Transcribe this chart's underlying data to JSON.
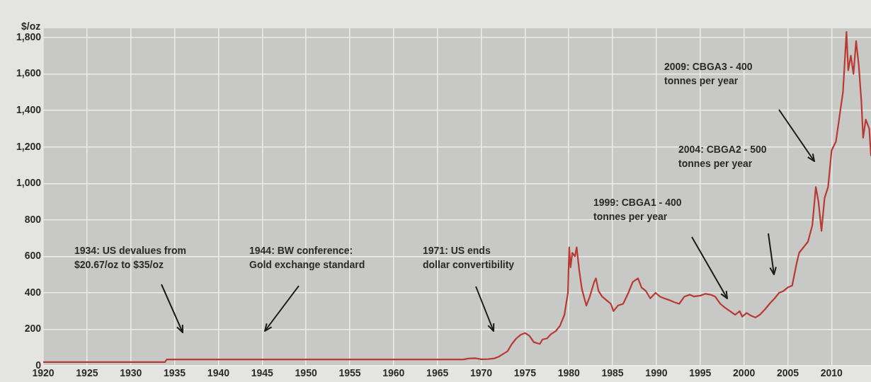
{
  "chart_data": {
    "type": "line",
    "ylabel": "$/oz",
    "x": [
      1920,
      1933.9,
      1934.1,
      1968,
      1968.5,
      1969.3,
      1970,
      1970.8,
      1971.5,
      1972,
      1972.5,
      1973,
      1973.5,
      1974,
      1974.5,
      1975,
      1975.5,
      1976,
      1976.7,
      1977,
      1977.5,
      1978,
      1978.5,
      1979,
      1979.5,
      1979.9,
      1980.05,
      1980.2,
      1980.4,
      1980.7,
      1980.9,
      1981.2,
      1981.5,
      1982,
      1982.4,
      1982.9,
      1983.1,
      1983.4,
      1983.8,
      1984.3,
      1984.8,
      1985.1,
      1985.6,
      1986.2,
      1986.8,
      1987.3,
      1987.9,
      1988.3,
      1988.8,
      1989.3,
      1989.9,
      1990.4,
      1990.9,
      1991.5,
      1992,
      1992.6,
      1993.2,
      1993.8,
      1994.3,
      1995,
      1995.6,
      1996.2,
      1996.7,
      1997.3,
      1997.8,
      1998.4,
      1999,
      1999.5,
      1999.8,
      2000.3,
      2000.8,
      2001.3,
      2001.8,
      2002.4,
      2003,
      2003.5,
      2004,
      2004.5,
      2005,
      2005.5,
      2006,
      2006.3,
      2006.8,
      2007.3,
      2007.8,
      2008.2,
      2008.5,
      2008.85,
      2009.2,
      2009.6,
      2010,
      2010.5,
      2011,
      2011.3,
      2011.7,
      2011.9,
      2012.2,
      2012.5,
      2012.8,
      2013.1,
      2013.4,
      2013.6,
      2013.9,
      2014.3,
      2014.5
    ],
    "values": [
      21,
      21,
      35,
      35,
      40,
      42,
      36,
      37,
      41,
      50,
      65,
      80,
      120,
      150,
      170,
      180,
      165,
      130,
      120,
      145,
      150,
      175,
      190,
      220,
      280,
      400,
      650,
      540,
      620,
      600,
      650,
      520,
      420,
      330,
      380,
      460,
      480,
      410,
      380,
      360,
      340,
      300,
      330,
      340,
      400,
      460,
      480,
      430,
      410,
      370,
      400,
      380,
      370,
      360,
      350,
      340,
      380,
      390,
      380,
      385,
      395,
      390,
      380,
      340,
      320,
      300,
      280,
      300,
      270,
      290,
      275,
      265,
      280,
      310,
      345,
      370,
      400,
      410,
      430,
      440,
      560,
      620,
      650,
      680,
      770,
      980,
      900,
      740,
      920,
      980,
      1180,
      1230,
      1400,
      1500,
      1830,
      1620,
      1700,
      1600,
      1780,
      1650,
      1450,
      1250,
      1350,
      1300,
      1150
    ],
    "color": "#b83a32",
    "xlim": [
      1920,
      2014.5
    ],
    "ylim": [
      0,
      1850
    ],
    "xticks": [
      1920,
      1925,
      1930,
      1935,
      1940,
      1945,
      1950,
      1955,
      1960,
      1965,
      1970,
      1975,
      1980,
      1985,
      1990,
      1995,
      2000,
      2005,
      2010
    ],
    "yticks": [
      0,
      200,
      400,
      600,
      800,
      {
        "value": 1000,
        "label": "1,000"
      },
      {
        "value": 1200,
        "label": "1,200"
      },
      {
        "value": 1400,
        "label": "1,400"
      },
      {
        "value": 1600,
        "label": "1,600"
      },
      {
        "value": 1800,
        "label": "1,800"
      }
    ],
    "grid": true,
    "legend": false,
    "marker": "none",
    "line_style": "solid",
    "annotations": [
      "1934: US devalues from $20.67/oz to $35/oz",
      "1944: BW conference: Gold exchange standard",
      "1971: US ends dollar convertibility",
      "1999: CBGA1 - 400 tonnes per year",
      "2004: CBGA2 - 500 tonnes per year",
      "2009: CBGA3 - 400 tonnes per year"
    ]
  }
}
